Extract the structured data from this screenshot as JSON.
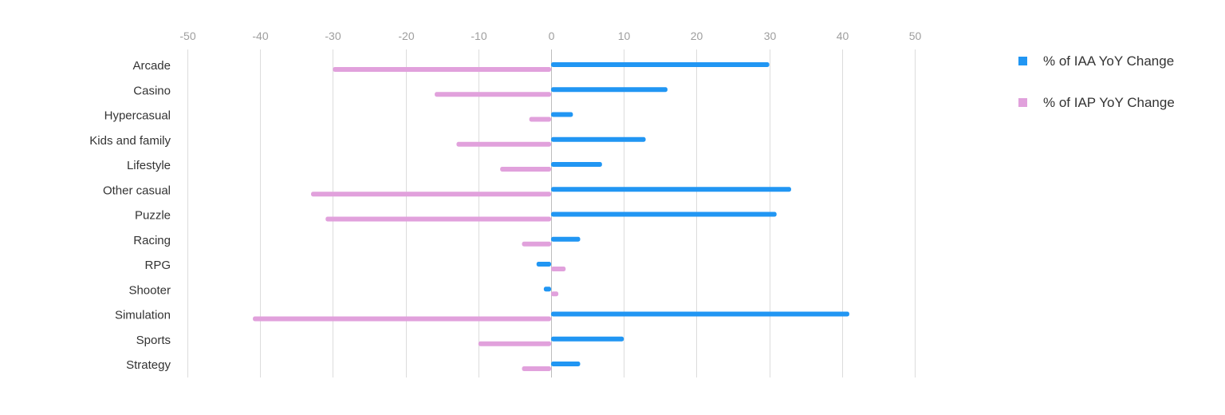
{
  "chart_data": {
    "type": "bar",
    "orientation": "horizontal",
    "title": "",
    "xlabel": "",
    "ylabel": "",
    "xlim": [
      -50,
      50
    ],
    "x_ticks": [
      -50,
      -40,
      -30,
      -20,
      -10,
      0,
      10,
      20,
      30,
      40,
      50
    ],
    "grid": true,
    "legend_position": "right",
    "categories": [
      "Arcade",
      "Casino",
      "Hypercasual",
      "Kids and family",
      "Lifestyle",
      "Other casual",
      "Puzzle",
      "Racing",
      "RPG",
      "Shooter",
      "Simulation",
      "Sports",
      "Strategy"
    ],
    "series": [
      {
        "name": "% of IAA YoY Change",
        "color": "#2196F3",
        "values": [
          30,
          16,
          3,
          13,
          7,
          33,
          31,
          4,
          -2,
          -1,
          41,
          10,
          4
        ]
      },
      {
        "name": "% of IAP YoY Change",
        "color": "#E1A1DC",
        "values": [
          -30,
          -16,
          -3,
          -13,
          -7,
          -33,
          -31,
          -4,
          2,
          1,
          -41,
          -10,
          -4
        ]
      }
    ]
  }
}
